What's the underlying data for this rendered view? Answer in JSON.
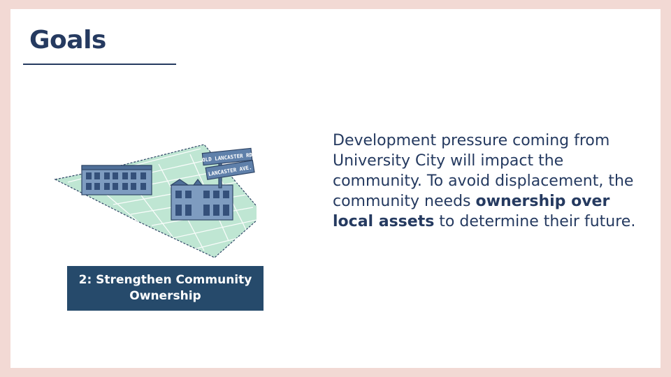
{
  "slide": {
    "title": "Goals",
    "caption": "2: Strengthen Community Ownership",
    "body": {
      "part1": "Development pressure coming from University City will impact the community. To avoid displacement, the community needs ",
      "emphasis": "ownership over local assets",
      "part2": " to determine their future."
    },
    "illustration": {
      "sign_top": "OLD LANCASTER RD",
      "sign_bottom": "LANCASTER AVE."
    }
  },
  "colors": {
    "frame": "#f2d9d4",
    "title": "#253a60",
    "caption_bg": "#264a6b",
    "map_green": "#a8dcc4",
    "building_blue": "#6f8fb5"
  }
}
